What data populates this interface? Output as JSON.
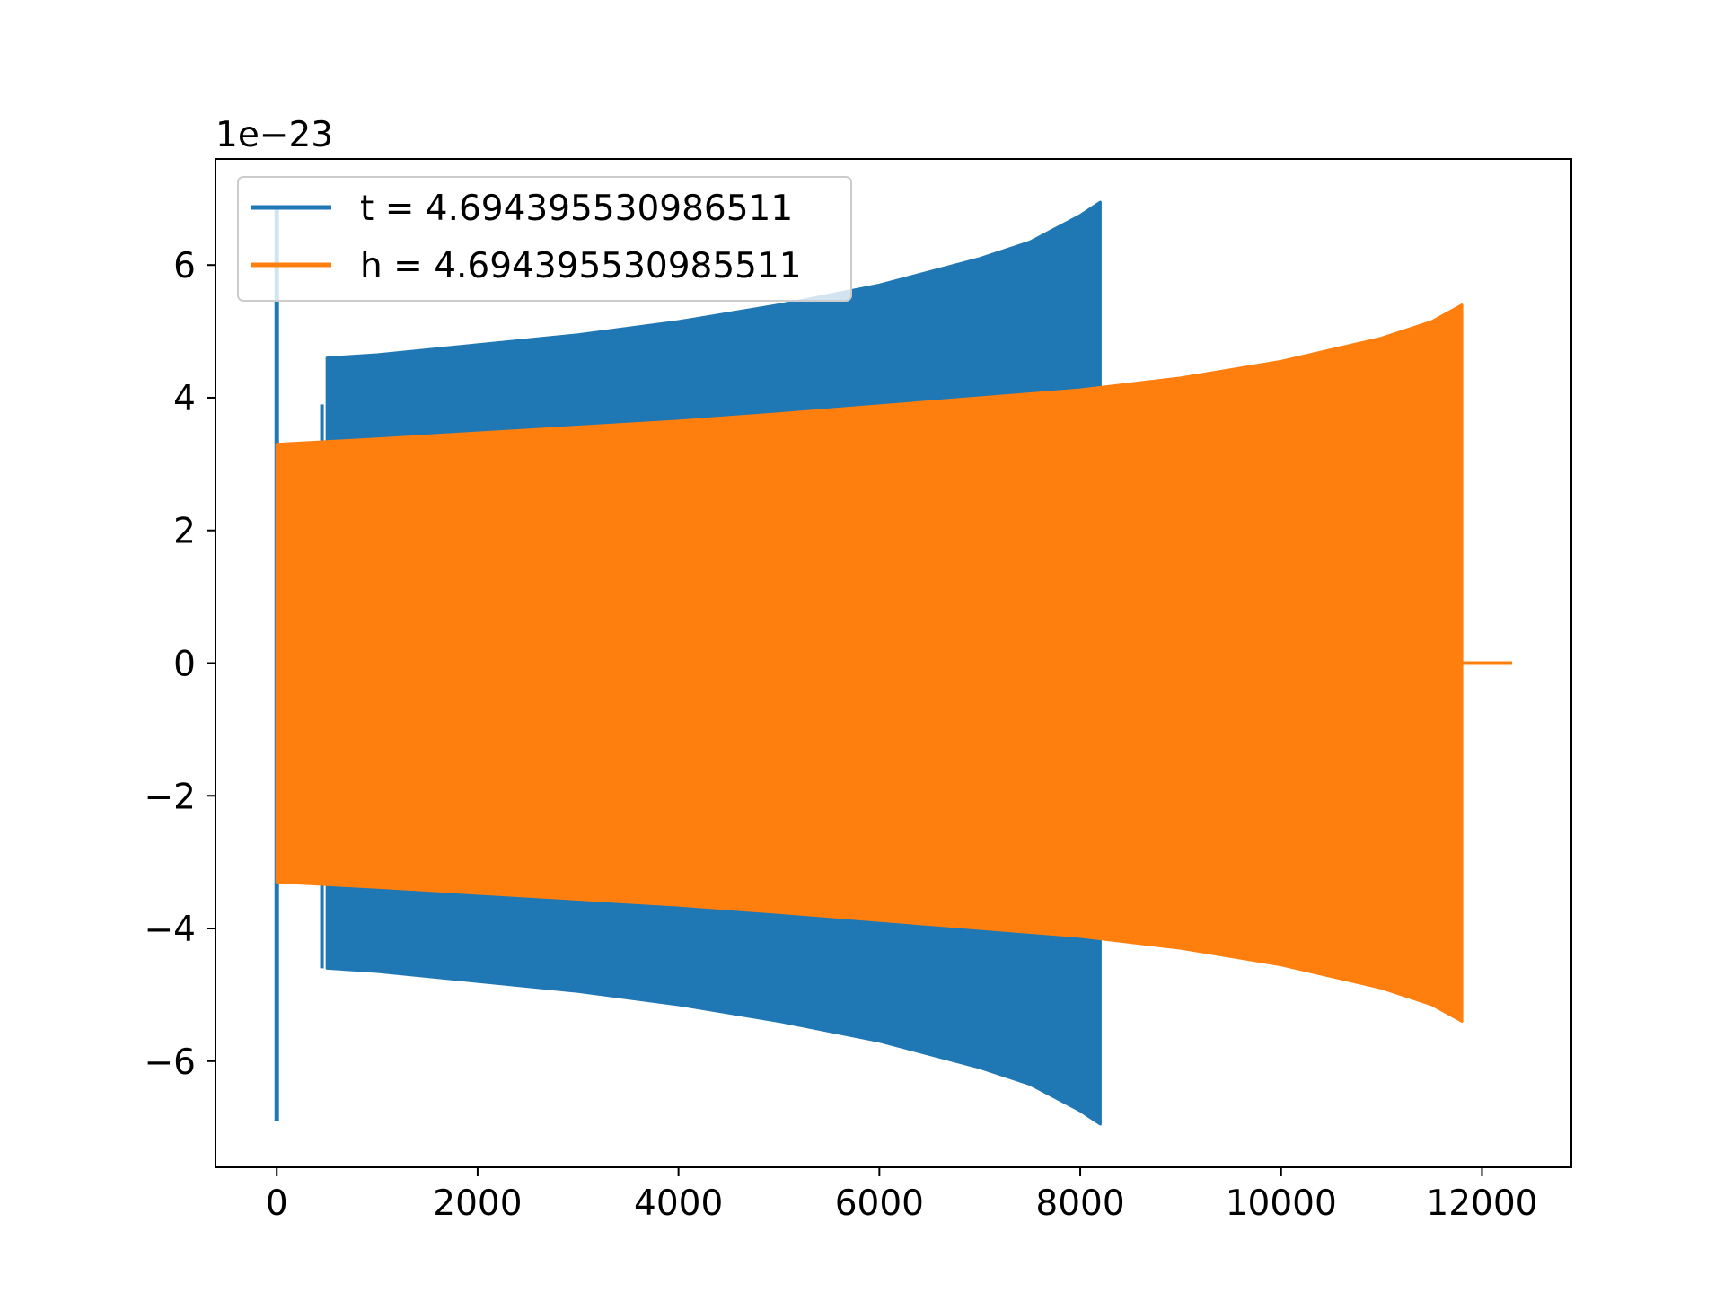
{
  "chart_data": {
    "type": "line",
    "title": "",
    "xlabel": "",
    "ylabel": "",
    "xlim": [
      -610,
      12890
    ],
    "ylim": [
      -7.6,
      7.6
    ],
    "y_offset_label": "1e−23",
    "grid": false,
    "legend_position": "upper-left",
    "xticks": [
      0,
      2000,
      4000,
      6000,
      8000,
      10000,
      12000
    ],
    "xtick_labels": [
      "0",
      "2000",
      "4000",
      "6000",
      "8000",
      "10000",
      "12000"
    ],
    "yticks": [
      -6,
      -4,
      -2,
      0,
      2,
      4,
      6
    ],
    "ytick_labels": [
      "−6",
      "−4",
      "−2",
      "0",
      "2",
      "4",
      "6"
    ],
    "series": [
      {
        "name": "t = 4.694395530986511",
        "color": "#1f77b4",
        "spike": {
          "x": 0,
          "y_max": 6.9,
          "y_min": -6.9
        },
        "step": {
          "x": 450,
          "y_max": 3.9,
          "y_min": -4.6
        },
        "envelope_x": [
          500,
          1000,
          2000,
          3000,
          4000,
          5000,
          6000,
          7000,
          7500,
          8000,
          8200
        ],
        "envelope_y": [
          4.6,
          4.65,
          4.8,
          4.95,
          5.15,
          5.4,
          5.7,
          6.1,
          6.35,
          6.75,
          6.95
        ]
      },
      {
        "name": "h = 4.694395530985511",
        "color": "#ff7f0e",
        "envelope_x": [
          0,
          1000,
          2000,
          3000,
          4000,
          5000,
          6000,
          7000,
          8000,
          9000,
          10000,
          11000,
          11500,
          11800
        ],
        "envelope_y": [
          3.3,
          3.38,
          3.47,
          3.56,
          3.65,
          3.76,
          3.88,
          4.0,
          4.12,
          4.3,
          4.55,
          4.9,
          5.15,
          5.4
        ],
        "tail_x": [
          11800,
          12300
        ],
        "tail_y": 0
      }
    ]
  }
}
